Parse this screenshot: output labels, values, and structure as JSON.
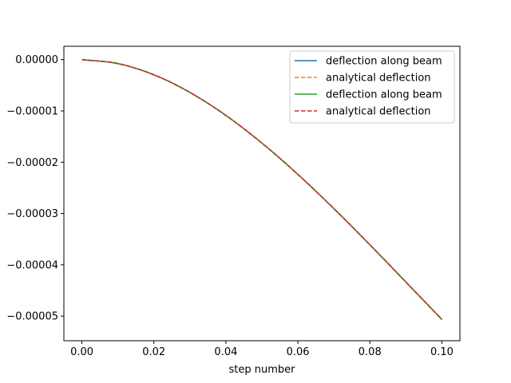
{
  "chart_data": {
    "type": "line",
    "title": "",
    "xlabel": "step number",
    "ylabel": "",
    "xlim": [
      -0.005,
      0.105
    ],
    "ylim": [
      -5.48e-05,
      2.6e-06
    ],
    "x_ticks": [
      0.0,
      0.02,
      0.04,
      0.06,
      0.08,
      0.1
    ],
    "x_tick_labels": [
      "0.00",
      "0.02",
      "0.04",
      "0.06",
      "0.08",
      "0.10"
    ],
    "y_ticks": [
      0,
      -1e-05,
      -2e-05,
      -3e-05,
      -4e-05,
      -5e-05
    ],
    "y_tick_labels": [
      "0.00000",
      "−0.00001",
      "−0.00002",
      "−0.00003",
      "−0.00004",
      "−0.00005"
    ],
    "grid": false,
    "legend": "top-right",
    "x": [
      0.0,
      0.01,
      0.02,
      0.03,
      0.04,
      0.05,
      0.06,
      0.07,
      0.08,
      0.09,
      0.1
    ],
    "series": [
      {
        "name": "deflection along beam",
        "style": "solid",
        "color": "#1f77b4",
        "values": [
          0,
          -7.7e-07,
          -2.96e-06,
          -6.39e-06,
          -1.088e-05,
          -1.627e-05,
          -2.238e-05,
          -2.905e-05,
          -3.61e-05,
          -4.336e-05,
          -5.066e-05
        ]
      },
      {
        "name": "analytical deflection",
        "style": "dashed",
        "color": "#ff7f0e",
        "values": [
          0,
          -7.7e-07,
          -2.96e-06,
          -6.39e-06,
          -1.088e-05,
          -1.627e-05,
          -2.238e-05,
          -2.905e-05,
          -3.61e-05,
          -4.336e-05,
          -5.066e-05
        ]
      },
      {
        "name": "deflection along beam",
        "style": "solid",
        "color": "#2ca02c",
        "values": [
          0,
          -7.7e-07,
          -2.96e-06,
          -6.39e-06,
          -1.088e-05,
          -1.627e-05,
          -2.238e-05,
          -2.905e-05,
          -3.61e-05,
          -4.336e-05,
          -5.066e-05
        ]
      },
      {
        "name": "analytical deflection",
        "style": "dashed",
        "color": "#d62728",
        "values": [
          0,
          -7.7e-07,
          -2.96e-06,
          -6.39e-06,
          -1.088e-05,
          -1.627e-05,
          -2.238e-05,
          -2.905e-05,
          -3.61e-05,
          -4.336e-05,
          -5.066e-05
        ]
      }
    ]
  }
}
